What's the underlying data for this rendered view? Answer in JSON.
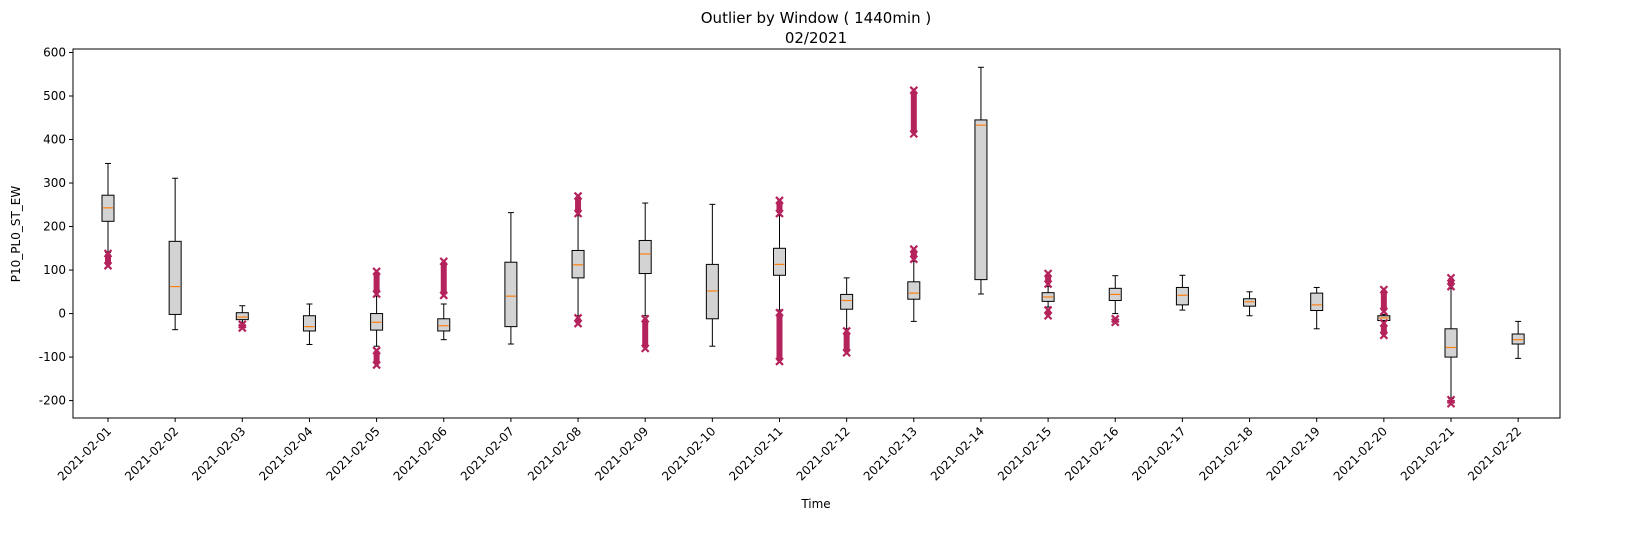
{
  "chart_data": {
    "type": "box",
    "title": "Outlier by Window ( 1440min )",
    "subtitle": "02/2021",
    "xlabel": "Time",
    "ylabel": "P10_PL0_ST_EW",
    "ylim": [
      -240,
      608
    ],
    "yticks": [
      -200,
      -100,
      0,
      100,
      200,
      300,
      400,
      500,
      600
    ],
    "grid": false,
    "colors": {
      "box_fill": "#d3d3d3",
      "box_edge": "#000000",
      "median": "#ff7f0e",
      "outlier": "#b5235c"
    },
    "categories": [
      "2021-02-01",
      "2021-02-02",
      "2021-02-03",
      "2021-02-04",
      "2021-02-05",
      "2021-02-06",
      "2021-02-07",
      "2021-02-08",
      "2021-02-09",
      "2021-02-10",
      "2021-02-11",
      "2021-02-12",
      "2021-02-13",
      "2021-02-14",
      "2021-02-15",
      "2021-02-16",
      "2021-02-17",
      "2021-02-18",
      "2021-02-19",
      "2021-02-20",
      "2021-02-21",
      "2021-02-22"
    ],
    "boxes": [
      {
        "whislo": 140,
        "q1": 212,
        "med": 243,
        "q3": 272,
        "whishi": 345,
        "outliers": [
          [
            110,
            138
          ]
        ]
      },
      {
        "whislo": -37,
        "q1": -2,
        "med": 62,
        "q3": 166,
        "whishi": 311,
        "outliers": []
      },
      {
        "whislo": -20,
        "q1": -14,
        "med": -8,
        "q3": 2,
        "whishi": 18,
        "outliers": [
          [
            -33,
            -25
          ]
        ]
      },
      {
        "whislo": -71,
        "q1": -40,
        "med": -30,
        "q3": -5,
        "whishi": 22,
        "outliers": []
      },
      {
        "whislo": -75,
        "q1": -38,
        "med": -20,
        "q3": 0,
        "whishi": 40,
        "outliers": [
          [
            45,
            97
          ],
          [
            -118,
            -85
          ]
        ]
      },
      {
        "whislo": -60,
        "q1": -40,
        "med": -28,
        "q3": -12,
        "whishi": 22,
        "outliers": [
          [
            42,
            120
          ]
        ]
      },
      {
        "whislo": -70,
        "q1": -30,
        "med": 40,
        "q3": 118,
        "whishi": 232,
        "outliers": []
      },
      {
        "whislo": -5,
        "q1": 82,
        "med": 112,
        "q3": 145,
        "whishi": 225,
        "outliers": [
          [
            230,
            270
          ],
          [
            -23,
            -10
          ]
        ]
      },
      {
        "whislo": -5,
        "q1": 92,
        "med": 137,
        "q3": 168,
        "whishi": 254,
        "outliers": [
          [
            -80,
            -12
          ]
        ]
      },
      {
        "whislo": -75,
        "q1": -12,
        "med": 52,
        "q3": 113,
        "whishi": 251,
        "outliers": []
      },
      {
        "whislo": 8,
        "q1": 88,
        "med": 113,
        "q3": 150,
        "whishi": 225,
        "outliers": [
          [
            230,
            260
          ],
          [
            -110,
            2
          ]
        ]
      },
      {
        "whislo": -35,
        "q1": 10,
        "med": 30,
        "q3": 44,
        "whishi": 82,
        "outliers": [
          [
            -90,
            -40
          ]
        ]
      },
      {
        "whislo": -18,
        "q1": 33,
        "med": 47,
        "q3": 73,
        "whishi": 120,
        "outliers": [
          [
            125,
            148
          ],
          [
            413,
            513
          ]
        ]
      },
      {
        "whislo": 45,
        "q1": 78,
        "med": 433,
        "q3": 445,
        "whishi": 566,
        "outliers": []
      },
      {
        "whislo": 15,
        "q1": 28,
        "med": 38,
        "q3": 48,
        "whishi": 62,
        "outliers": [
          [
            68,
            92
          ],
          [
            -5,
            8
          ]
        ]
      },
      {
        "whislo": 0,
        "q1": 30,
        "med": 44,
        "q3": 58,
        "whishi": 87,
        "outliers": [
          [
            -20,
            -12
          ]
        ]
      },
      {
        "whislo": 8,
        "q1": 20,
        "med": 42,
        "q3": 60,
        "whishi": 88,
        "outliers": []
      },
      {
        "whislo": -5,
        "q1": 17,
        "med": 27,
        "q3": 34,
        "whishi": 50,
        "outliers": []
      },
      {
        "whislo": -35,
        "q1": 7,
        "med": 20,
        "q3": 47,
        "whishi": 60,
        "outliers": []
      },
      {
        "whislo": -18,
        "q1": -16,
        "med": -10,
        "q3": -5,
        "whishi": -2,
        "outliers": [
          [
            5,
            55
          ],
          [
            -50,
            -22
          ]
        ]
      },
      {
        "whislo": -195,
        "q1": -100,
        "med": -78,
        "q3": -35,
        "whishi": 58,
        "outliers": [
          [
            62,
            82
          ],
          [
            -207,
            -198
          ]
        ]
      },
      {
        "whislo": -103,
        "q1": -70,
        "med": -60,
        "q3": -47,
        "whishi": -18,
        "outliers": []
      }
    ]
  }
}
